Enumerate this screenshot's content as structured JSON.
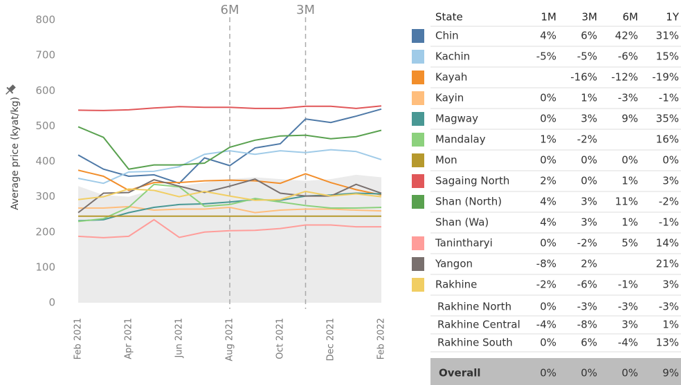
{
  "chart_data": {
    "type": "line",
    "y_label": "Average price (kyat/kg)",
    "categories": [
      "Feb 2021",
      null,
      "Apr 2021",
      null,
      "Jun 2021",
      null,
      "Aug 2021",
      null,
      "Oct 2021",
      null,
      "Dec 2021",
      null,
      "Feb 2022"
    ],
    "ylim": [
      0,
      800
    ],
    "yticks": [
      0,
      100,
      200,
      300,
      400,
      500,
      600,
      700,
      800
    ],
    "area": {
      "color": "#ebebeb",
      "values": [
        330,
        305,
        300,
        320,
        330,
        340,
        350,
        355,
        350,
        345,
        350,
        362,
        355
      ]
    },
    "reference_lines": [
      {
        "label": "6M",
        "index": 6
      },
      {
        "label": "3M",
        "index": 9
      }
    ],
    "series": [
      {
        "name": "Chin",
        "color": "#4e79a7",
        "values": [
          418,
          378,
          358,
          362,
          338,
          410,
          388,
          438,
          450,
          520,
          510,
          528,
          548
        ]
      },
      {
        "name": "Kachin",
        "color": "#a0cbe8",
        "values": [
          352,
          338,
          370,
          372,
          385,
          420,
          430,
          420,
          430,
          425,
          433,
          428,
          405
        ]
      },
      {
        "name": "Kayah",
        "color": "#f28e2b",
        "values": [
          375,
          358,
          318,
          340,
          340,
          345,
          347,
          345,
          338,
          365,
          340,
          320,
          305
        ]
      },
      {
        "name": "Kayin",
        "color": "#ffbe7d",
        "values": [
          268,
          268,
          272,
          262,
          265,
          265,
          270,
          255,
          262,
          265,
          265,
          262,
          260
        ]
      },
      {
        "name": "Magway",
        "color": "#499894",
        "values": [
          232,
          235,
          255,
          270,
          278,
          280,
          285,
          292,
          290,
          302,
          305,
          310,
          308
        ]
      },
      {
        "name": "Mandalay",
        "color": "#8cd17d",
        "values": [
          230,
          238,
          270,
          335,
          328,
          273,
          278,
          295,
          285,
          275,
          268,
          268,
          270
        ]
      },
      {
        "name": "Mon",
        "color": "#b6992d",
        "values": [
          245,
          245,
          245,
          245,
          245,
          245,
          245,
          245,
          245,
          245,
          245,
          245,
          245
        ]
      },
      {
        "name": "Sagaing North",
        "color": "#e15759",
        "values": [
          545,
          544,
          546,
          551,
          555,
          553,
          553,
          550,
          550,
          556,
          556,
          550,
          557
        ]
      },
      {
        "name": "Shan (North)",
        "color": "#59a14f",
        "values": [
          498,
          468,
          378,
          390,
          390,
          395,
          440,
          460,
          472,
          474,
          464,
          470,
          488
        ]
      },
      {
        "name": "Tanintharyi",
        "color": "#ff9d9a",
        "values": [
          188,
          184,
          188,
          235,
          185,
          200,
          204,
          205,
          210,
          220,
          220,
          215,
          215
        ]
      },
      {
        "name": "Yangon",
        "color": "#79706e",
        "values": [
          255,
          310,
          312,
          348,
          330,
          312,
          330,
          350,
          310,
          302,
          302,
          335,
          310
        ]
      },
      {
        "name": "Rakhine",
        "color": "#f1ce63",
        "values": [
          292,
          300,
          322,
          318,
          300,
          315,
          302,
          290,
          292,
          315,
          302,
          308,
          300
        ]
      }
    ]
  },
  "table": {
    "header": [
      "State",
      "1M",
      "3M",
      "6M",
      "1Y"
    ],
    "rows": [
      [
        "Chin",
        "4%",
        "6%",
        "42%",
        "31%"
      ],
      [
        "Kachin",
        "-5%",
        "-5%",
        "-6%",
        "15%"
      ],
      [
        "Kayah",
        null,
        "-16%",
        "-12%",
        "-19%"
      ],
      [
        "Kayin",
        "0%",
        "1%",
        "-3%",
        "-1%"
      ],
      [
        "Magway",
        "0%",
        "3%",
        "9%",
        "35%"
      ],
      [
        "Mandalay",
        "1%",
        "-2%",
        null,
        "16%"
      ],
      [
        "Mon",
        "0%",
        "0%",
        "0%",
        "0%"
      ],
      [
        "Sagaing North",
        "2%",
        "0%",
        "1%",
        "3%"
      ],
      [
        "Shan (North)",
        "4%",
        "3%",
        "11%",
        "-2%"
      ],
      [
        "Shan (Wa)",
        "4%",
        "3%",
        "1%",
        "-1%"
      ],
      [
        "Tanintharyi",
        "0%",
        "-2%",
        "5%",
        "14%"
      ],
      [
        "Yangon",
        "-8%",
        "2%",
        null,
        "21%"
      ],
      [
        "Rakhine",
        "-2%",
        "-6%",
        "-1%",
        "3%"
      ]
    ],
    "subrows": [
      [
        "Rakhine North",
        "0%",
        "-3%",
        "-3%",
        "-3%"
      ],
      [
        "Rakhine Central",
        "-4%",
        "-8%",
        "3%",
        "1%"
      ],
      [
        "Rakhine South",
        "0%",
        "6%",
        "-4%",
        "13%"
      ]
    ],
    "footer": [
      "Overall",
      "0%",
      "0%",
      "0%",
      "9%"
    ]
  }
}
